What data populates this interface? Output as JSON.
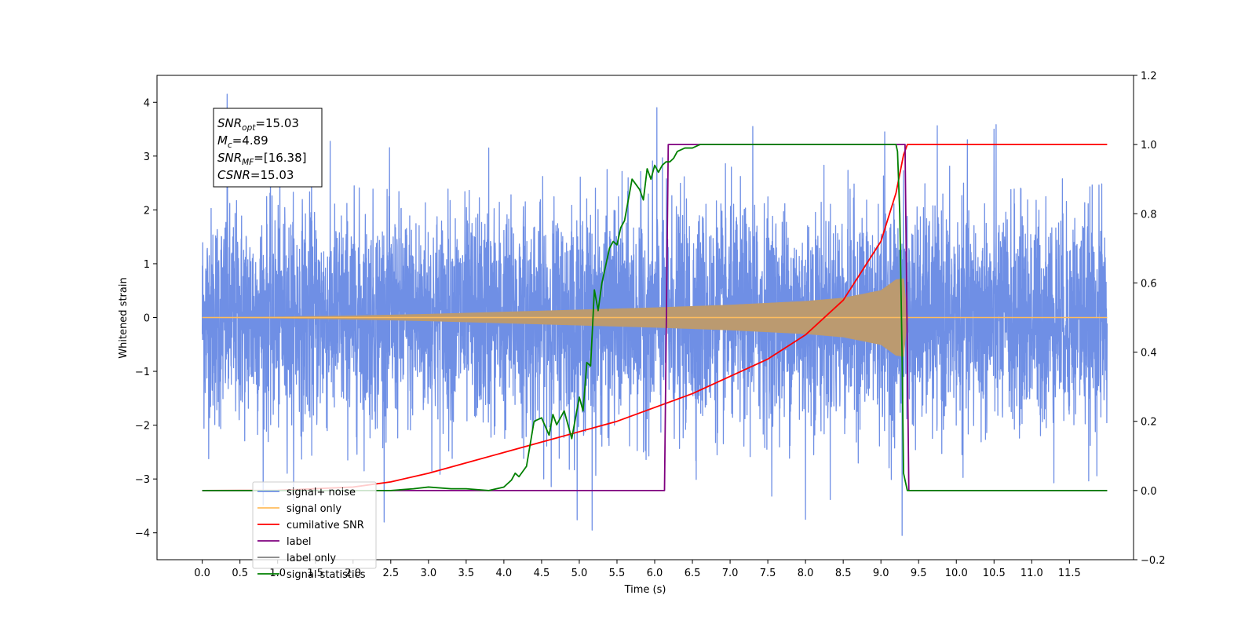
{
  "chart_data": {
    "type": "line",
    "xlabel": "Time (s)",
    "ylabel": "Whitened strain",
    "xlim": [
      -0.6,
      12.35
    ],
    "ylim": [
      -4.5,
      4.5
    ],
    "y2lim": [
      -0.2,
      1.2
    ],
    "x_ticks": [
      "0.0",
      "0.5",
      "1.0",
      "1.5",
      "2.0",
      "2.5",
      "3.0",
      "3.5",
      "4.0",
      "4.5",
      "5.0",
      "5.5",
      "6.0",
      "6.5",
      "7.0",
      "7.5",
      "8.0",
      "8.5",
      "9.0",
      "9.5",
      "10.0",
      "10.5",
      "11.0",
      "11.5"
    ],
    "y_ticks": [
      "−4",
      "−3",
      "−2",
      "−1",
      "0",
      "1",
      "2",
      "3",
      "4"
    ],
    "y2_ticks": [
      "−0.2",
      "0.0",
      "0.2",
      "0.4",
      "0.6",
      "0.8",
      "1.0",
      "1.2"
    ],
    "legend_position": "lower-left",
    "info_box": {
      "position": "upper-left",
      "lines": [
        {
          "sym": "SNR",
          "sub": "opt",
          "val": "=15.03"
        },
        {
          "sym": "M",
          "sub": "c",
          "val": "=4.89"
        },
        {
          "sym": "SNR",
          "sub": "MF",
          "val": "=[16.38]"
        },
        {
          "sym": "CSNR",
          "sub": "",
          "val": "=15.03"
        }
      ]
    },
    "series": [
      {
        "name": "signal+ noise",
        "color": "#6f8fe5",
        "axis": "left",
        "style": "noise",
        "x_range": [
          0,
          12
        ],
        "typical_amplitude": 1.0,
        "peaks": [
          [
            0.33,
            4.15
          ],
          [
            6.03,
            3.9
          ],
          [
            7.3,
            3.55
          ],
          [
            9.28,
            -4.05
          ],
          [
            5.17,
            -3.95
          ],
          [
            8.0,
            -3.75
          ],
          [
            10.5,
            3.5
          ],
          [
            9.05,
            3.45
          ],
          [
            3.8,
            3.15
          ],
          [
            1.45,
            3.3
          ]
        ]
      },
      {
        "name": "signal only",
        "color": "#ffbd5e",
        "axis": "left",
        "style": "chirp",
        "x_range": [
          0,
          12
        ],
        "merger_time": 9.3,
        "envelope": [
          [
            0,
            0.0
          ],
          [
            1.0,
            0.01
          ],
          [
            2.0,
            0.03
          ],
          [
            3.0,
            0.06
          ],
          [
            4.0,
            0.1
          ],
          [
            5.0,
            0.14
          ],
          [
            6.0,
            0.18
          ],
          [
            7.0,
            0.23
          ],
          [
            8.0,
            0.3
          ],
          [
            8.5,
            0.36
          ],
          [
            9.0,
            0.5
          ],
          [
            9.2,
            0.7
          ],
          [
            9.3,
            0.72
          ],
          [
            9.35,
            0.0
          ]
        ]
      },
      {
        "name": "cumilative SNR",
        "color": "#ff0000",
        "axis": "right",
        "x": [
          0,
          1,
          2,
          2.5,
          3,
          3.5,
          4,
          4.5,
          5,
          5.5,
          6,
          6.5,
          7,
          7.5,
          8,
          8.5,
          9,
          9.2,
          9.3,
          9.35,
          12
        ],
        "y": [
          0,
          0.0005,
          0.01,
          0.025,
          0.05,
          0.08,
          0.11,
          0.14,
          0.17,
          0.2,
          0.24,
          0.28,
          0.33,
          0.38,
          0.45,
          0.55,
          0.72,
          0.86,
          0.97,
          1.0,
          1.0
        ]
      },
      {
        "name": "label",
        "color": "#7f007f",
        "axis": "right",
        "x": [
          0,
          6.13,
          6.18,
          9.32,
          9.37,
          12
        ],
        "y": [
          0,
          0,
          1,
          1,
          0,
          0
        ]
      },
      {
        "name": "label only",
        "color": "#808080",
        "axis": "right",
        "x": [],
        "y": []
      },
      {
        "name": "signal statistics",
        "color": "#008000",
        "axis": "right",
        "x": [
          0,
          2.5,
          2.8,
          3.0,
          3.3,
          3.5,
          3.8,
          4.0,
          4.1,
          4.15,
          4.2,
          4.3,
          4.4,
          4.5,
          4.6,
          4.65,
          4.7,
          4.8,
          4.9,
          5.0,
          5.05,
          5.1,
          5.15,
          5.2,
          5.25,
          5.3,
          5.35,
          5.4,
          5.45,
          5.5,
          5.55,
          5.6,
          5.7,
          5.8,
          5.85,
          5.9,
          5.95,
          6.0,
          6.05,
          6.1,
          6.15,
          6.2,
          6.25,
          6.3,
          6.4,
          6.5,
          6.6,
          6.8,
          7.0,
          8.0,
          9.0,
          9.2,
          9.22,
          9.25,
          9.28,
          9.3,
          9.35,
          9.4,
          12
        ],
        "y": [
          0,
          0,
          0.005,
          0.01,
          0.005,
          0.005,
          0.0,
          0.01,
          0.03,
          0.05,
          0.04,
          0.07,
          0.2,
          0.21,
          0.16,
          0.22,
          0.19,
          0.23,
          0.15,
          0.27,
          0.23,
          0.37,
          0.36,
          0.58,
          0.52,
          0.6,
          0.65,
          0.7,
          0.72,
          0.71,
          0.76,
          0.78,
          0.9,
          0.87,
          0.84,
          0.93,
          0.9,
          0.94,
          0.92,
          0.94,
          0.95,
          0.95,
          0.96,
          0.98,
          0.99,
          0.99,
          1.0,
          1.0,
          1.0,
          1.0,
          1.0,
          1.0,
          0.98,
          0.8,
          0.4,
          0.05,
          0.0,
          0.0,
          0.0
        ]
      }
    ]
  }
}
